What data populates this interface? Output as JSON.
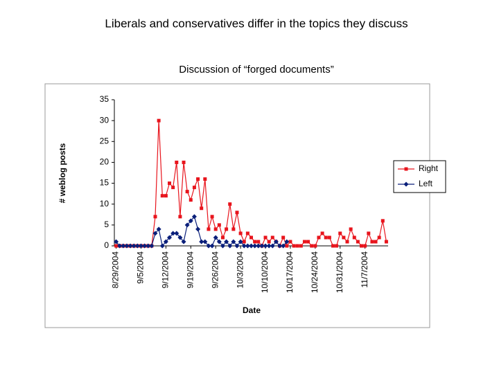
{
  "slide_title": "Liberals and conservatives differ in the  topics they discuss",
  "chart_data": {
    "type": "line",
    "title": "Discussion of “forged documents”",
    "xlabel": "Date",
    "ylabel": "# weblog posts",
    "categories": [
      "8/29/2004",
      null,
      null,
      null,
      null,
      null,
      null,
      "9/5/2004",
      null,
      null,
      null,
      null,
      null,
      null,
      "9/12/2004",
      null,
      null,
      null,
      null,
      null,
      null,
      "9/19/2004",
      null,
      null,
      null,
      null,
      null,
      null,
      "9/26/2004",
      null,
      null,
      null,
      null,
      null,
      null,
      "10/3/2004",
      null,
      null,
      null,
      null,
      null,
      null,
      "10/10/2004",
      null,
      null,
      null,
      null,
      null,
      null,
      "10/17/2004",
      null,
      null,
      null,
      null,
      null,
      null,
      "10/24/2004",
      null,
      null,
      null,
      null,
      null,
      null,
      "10/31/2004",
      null,
      null,
      null,
      null,
      null,
      null,
      "11/7/2004",
      null,
      null,
      null,
      null,
      null,
      null
    ],
    "series": [
      {
        "name": "Right",
        "color": "#e8141c",
        "marker": "square",
        "values": [
          0,
          0,
          0,
          0,
          0,
          0,
          0,
          0,
          0,
          0,
          0,
          7,
          30,
          12,
          12,
          15,
          14,
          20,
          7,
          20,
          13,
          11,
          14,
          16,
          9,
          16,
          4,
          7,
          4,
          5,
          2,
          4,
          10,
          4,
          8,
          3,
          1,
          3,
          2,
          1,
          1,
          0,
          2,
          1,
          2,
          1,
          0,
          2,
          0,
          1,
          0,
          0,
          0,
          1,
          1,
          0,
          0,
          2,
          3,
          2,
          2,
          0,
          0,
          3,
          2,
          1,
          4,
          2,
          1,
          0,
          0,
          3,
          1,
          1,
          2,
          6,
          1
        ]
      },
      {
        "name": "Left",
        "color": "#0a1f7a",
        "marker": "diamond",
        "values": [
          1,
          0,
          0,
          0,
          0,
          0,
          0,
          0,
          0,
          0,
          0,
          3,
          4,
          0,
          1,
          2,
          3,
          3,
          2,
          1,
          5,
          6,
          7,
          4,
          1,
          1,
          0,
          0,
          2,
          1,
          0,
          1,
          0,
          1,
          0,
          1,
          0,
          0,
          0,
          0,
          0,
          0,
          0,
          0,
          0,
          1,
          0,
          0,
          1,
          null,
          null,
          null,
          null,
          null,
          null,
          null,
          null,
          null,
          null,
          null,
          null,
          null,
          null,
          null,
          null,
          null,
          null,
          null,
          null,
          null,
          null,
          null,
          null,
          null,
          null,
          null,
          null
        ]
      }
    ],
    "ylim": [
      0,
      35
    ],
    "yticks": [
      0,
      5,
      10,
      15,
      20,
      25,
      30,
      35
    ],
    "grid": false,
    "legend": "right"
  }
}
